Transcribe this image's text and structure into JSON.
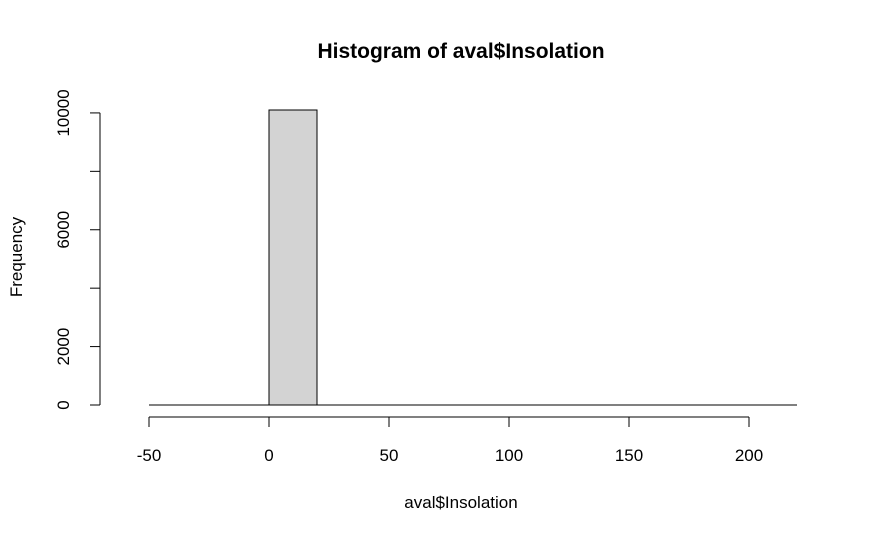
{
  "chart_data": {
    "type": "bar",
    "title": "Histogram of aval$Insolation",
    "xlabel": "aval$Insolation",
    "ylabel": "Frequency",
    "bins": [
      {
        "start": -50,
        "end": 0,
        "count": 0
      },
      {
        "start": 0,
        "end": 20,
        "count": 10100
      },
      {
        "start": 20,
        "end": 220,
        "count": 0
      }
    ],
    "x_ticks": [
      -50,
      0,
      50,
      100,
      150,
      200
    ],
    "x_tick_labels": [
      "-50",
      "0",
      "50",
      "100",
      "150",
      "200"
    ],
    "y_ticks": [
      0,
      2000,
      4000,
      6000,
      8000,
      10000
    ],
    "y_tick_labels": [
      "0",
      "2000",
      "",
      "6000",
      "",
      "10000"
    ],
    "xlim": [
      -60,
      220
    ],
    "ylim": [
      0,
      10100
    ],
    "grid": false,
    "bar_fill": "#d3d3d3",
    "line_color": "#000000"
  }
}
